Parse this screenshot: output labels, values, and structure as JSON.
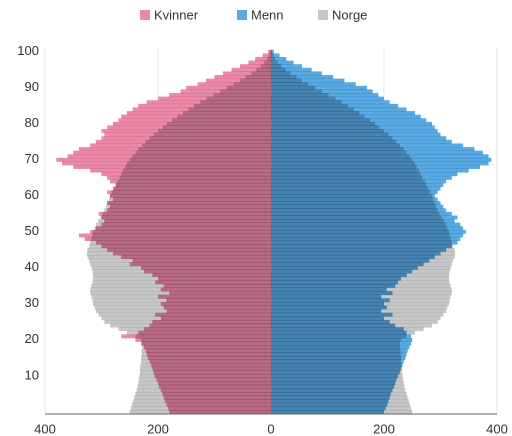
{
  "chart_data": {
    "type": "pyramid",
    "series": [
      {
        "name": "Kvinner",
        "color": "#ea8aa9",
        "side": "left",
        "values": [
          180,
          182,
          185,
          188,
          190,
          192,
          195,
          198,
          200,
          203,
          206,
          208,
          210,
          212,
          215,
          218,
          220,
          222,
          225,
          230,
          240,
          265,
          235,
          225,
          215,
          210,
          195,
          205,
          185,
          190,
          195,
          185,
          200,
          180,
          195,
          190,
          205,
          200,
          210,
          225,
          230,
          250,
          245,
          265,
          280,
          290,
          300,
          310,
          330,
          340,
          320,
          310,
          300,
          295,
          300,
          305,
          290,
          285,
          290,
          280,
          285,
          290,
          280,
          275,
          285,
          290,
          300,
          320,
          350,
          370,
          380,
          360,
          350,
          340,
          320,
          310,
          300,
          295,
          300,
          290,
          280,
          270,
          265,
          255,
          245,
          235,
          220,
          200,
          180,
          160,
          150,
          130,
          115,
          100,
          85,
          70,
          55,
          40,
          28,
          15,
          5
        ]
      },
      {
        "name": "Menn",
        "color": "#5aaae2",
        "side": "right",
        "values": [
          200,
          203,
          206,
          208,
          210,
          212,
          215,
          218,
          220,
          222,
          225,
          228,
          230,
          233,
          235,
          238,
          240,
          242,
          245,
          248,
          250,
          248,
          240,
          235,
          220,
          210,
          200,
          215,
          195,
          205,
          200,
          210,
          195,
          215,
          205,
          220,
          225,
          230,
          240,
          250,
          260,
          270,
          280,
          290,
          300,
          310,
          320,
          330,
          335,
          340,
          345,
          340,
          335,
          325,
          330,
          320,
          310,
          305,
          300,
          295,
          290,
          295,
          300,
          305,
          310,
          320,
          330,
          350,
          370,
          385,
          390,
          385,
          375,
          360,
          340,
          320,
          310,
          300,
          295,
          290,
          285,
          275,
          265,
          255,
          240,
          225,
          210,
          200,
          190,
          180,
          170,
          150,
          130,
          110,
          90,
          72,
          55,
          40,
          27,
          15,
          5
        ]
      },
      {
        "name": "Norge",
        "color": "#c6c6c6",
        "side": "both",
        "values": [
          250,
          248,
          246,
          244,
          242,
          240,
          238,
          236,
          235,
          234,
          233,
          232,
          232,
          231,
          230,
          230,
          229,
          229,
          228,
          228,
          230,
          240,
          255,
          270,
          285,
          295,
          300,
          305,
          310,
          312,
          315,
          316,
          318,
          320,
          320,
          318,
          316,
          315,
          315,
          316,
          318,
          320,
          322,
          325,
          326,
          325,
          322,
          320,
          318,
          316,
          315,
          312,
          310,
          306,
          302,
          298,
          295,
          292,
          290,
          287,
          285,
          282,
          278,
          275,
          272,
          268,
          265,
          262,
          258,
          255,
          250,
          245,
          240,
          235,
          228,
          222,
          215,
          208,
          200,
          192,
          184,
          175,
          166,
          156,
          146,
          136,
          125,
          114,
          102,
          90,
          78,
          66,
          55,
          45,
          35,
          26,
          18,
          12,
          7,
          4,
          2
        ]
      }
    ],
    "y": [
      0,
      1,
      2,
      3,
      4,
      5,
      6,
      7,
      8,
      9,
      10,
      11,
      12,
      13,
      14,
      15,
      16,
      17,
      18,
      19,
      20,
      21,
      22,
      23,
      24,
      25,
      26,
      27,
      28,
      29,
      30,
      31,
      32,
      33,
      34,
      35,
      36,
      37,
      38,
      39,
      40,
      41,
      42,
      43,
      44,
      45,
      46,
      47,
      48,
      49,
      50,
      51,
      52,
      53,
      54,
      55,
      56,
      57,
      58,
      59,
      60,
      61,
      62,
      63,
      64,
      65,
      66,
      67,
      68,
      69,
      70,
      71,
      72,
      73,
      74,
      75,
      76,
      77,
      78,
      79,
      80,
      81,
      82,
      83,
      84,
      85,
      86,
      87,
      88,
      89,
      90,
      91,
      92,
      93,
      94,
      95,
      96,
      97,
      98,
      99,
      100
    ],
    "xlim": [
      -400,
      400
    ],
    "xticks": [
      {
        "value": -400,
        "label": "400"
      },
      {
        "value": -200,
        "label": "200"
      },
      0,
      200,
      400
    ],
    "ylim": [
      -0.6,
      101
    ],
    "yticks": [
      10,
      20,
      30,
      40,
      50,
      60,
      70,
      80,
      90,
      100
    ],
    "grid": true,
    "legend": "top"
  }
}
